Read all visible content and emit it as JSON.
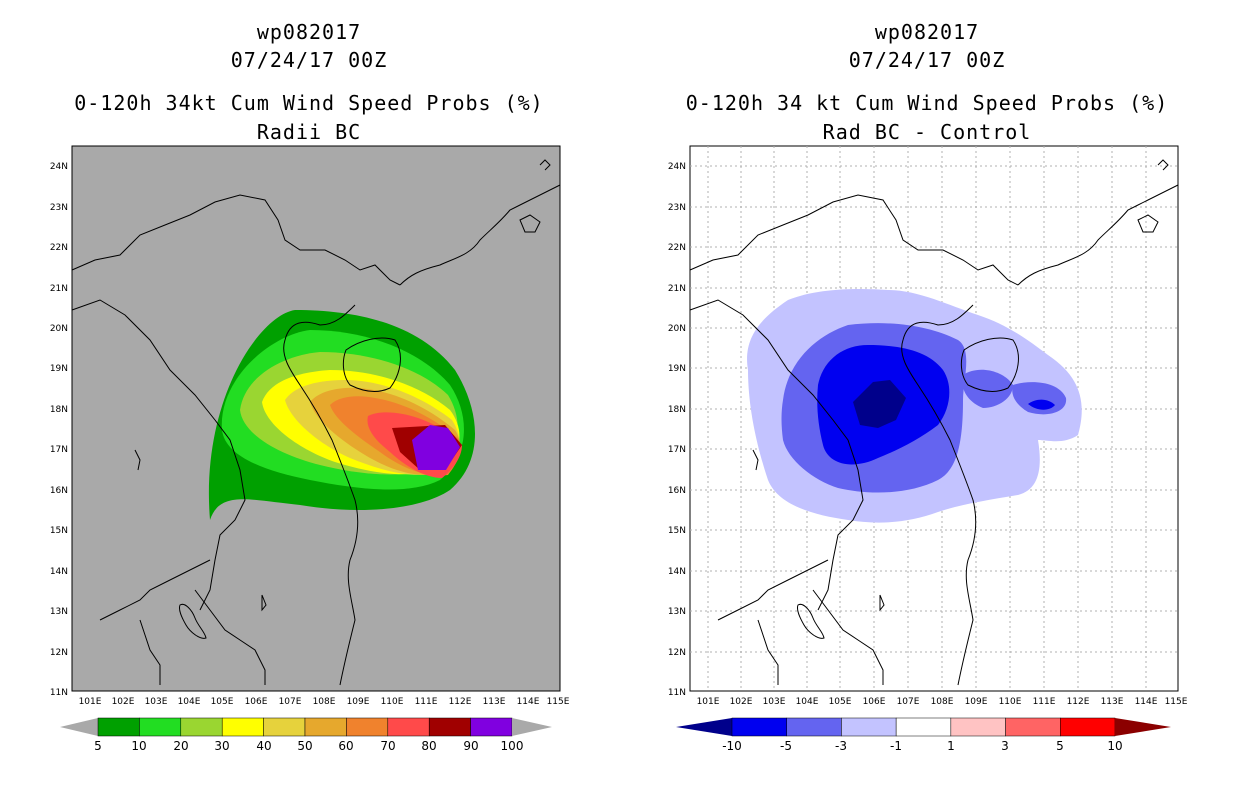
{
  "left": {
    "title_line1": "wp082017",
    "title_line2": "07/24/17 00Z",
    "title_line3": "0-120h 34kt Cum Wind Speed Probs (%)",
    "title_line4": "Radii BC",
    "background_color": "#a9a9a9",
    "lat_labels": [
      "24N",
      "23N",
      "22N",
      "21N",
      "20N",
      "19N",
      "18N",
      "17N",
      "16N",
      "15N",
      "14N",
      "13N",
      "12N",
      "11N"
    ],
    "lon_labels": [
      "101E",
      "102E",
      "103E",
      "104E",
      "105E",
      "106E",
      "107E",
      "108E",
      "109E",
      "110E",
      "111E",
      "112E",
      "113E",
      "114E",
      "115E"
    ],
    "colorbar": {
      "colors": [
        "#00a000",
        "#22dd22",
        "#9ad631",
        "#ffff00",
        "#e6d23c",
        "#e6a82d",
        "#f0822d",
        "#ff4a4a",
        "#a00000",
        "#8000e0"
      ],
      "labels": [
        "5",
        "10",
        "20",
        "30",
        "40",
        "50",
        "60",
        "70",
        "80",
        "90",
        "100"
      ],
      "end_color": "#a9a9a9"
    },
    "contour_levels": [
      5,
      10,
      20,
      30,
      40,
      50,
      60,
      70,
      80,
      90
    ]
  },
  "right": {
    "title_line1": "wp082017",
    "title_line2": "07/24/17 00Z",
    "title_line3": "0-120h 34 kt Cum Wind Speed Probs (%)",
    "title_line4": "Rad BC - Control",
    "background_color": "#ffffff",
    "lat_labels": [
      "24N",
      "23N",
      "22N",
      "21N",
      "20N",
      "19N",
      "18N",
      "17N",
      "16N",
      "15N",
      "14N",
      "13N",
      "12N",
      "11N"
    ],
    "lon_labels": [
      "101E",
      "102E",
      "103E",
      "104E",
      "105E",
      "106E",
      "107E",
      "108E",
      "109E",
      "110E",
      "111E",
      "112E",
      "113E",
      "114E",
      "115E"
    ],
    "colorbar": {
      "colors": [
        "#00008b",
        "#0000f0",
        "#6464f0",
        "#c3c3ff",
        "#ffffff",
        "#ffc3c3",
        "#ff6464",
        "#ff0000",
        "#8b0000"
      ],
      "labels": [
        "-10",
        "-5",
        "-3",
        "-1",
        "1",
        "3",
        "5",
        "10"
      ]
    },
    "contour_levels": [
      -10,
      -5,
      -3,
      -1
    ]
  }
}
